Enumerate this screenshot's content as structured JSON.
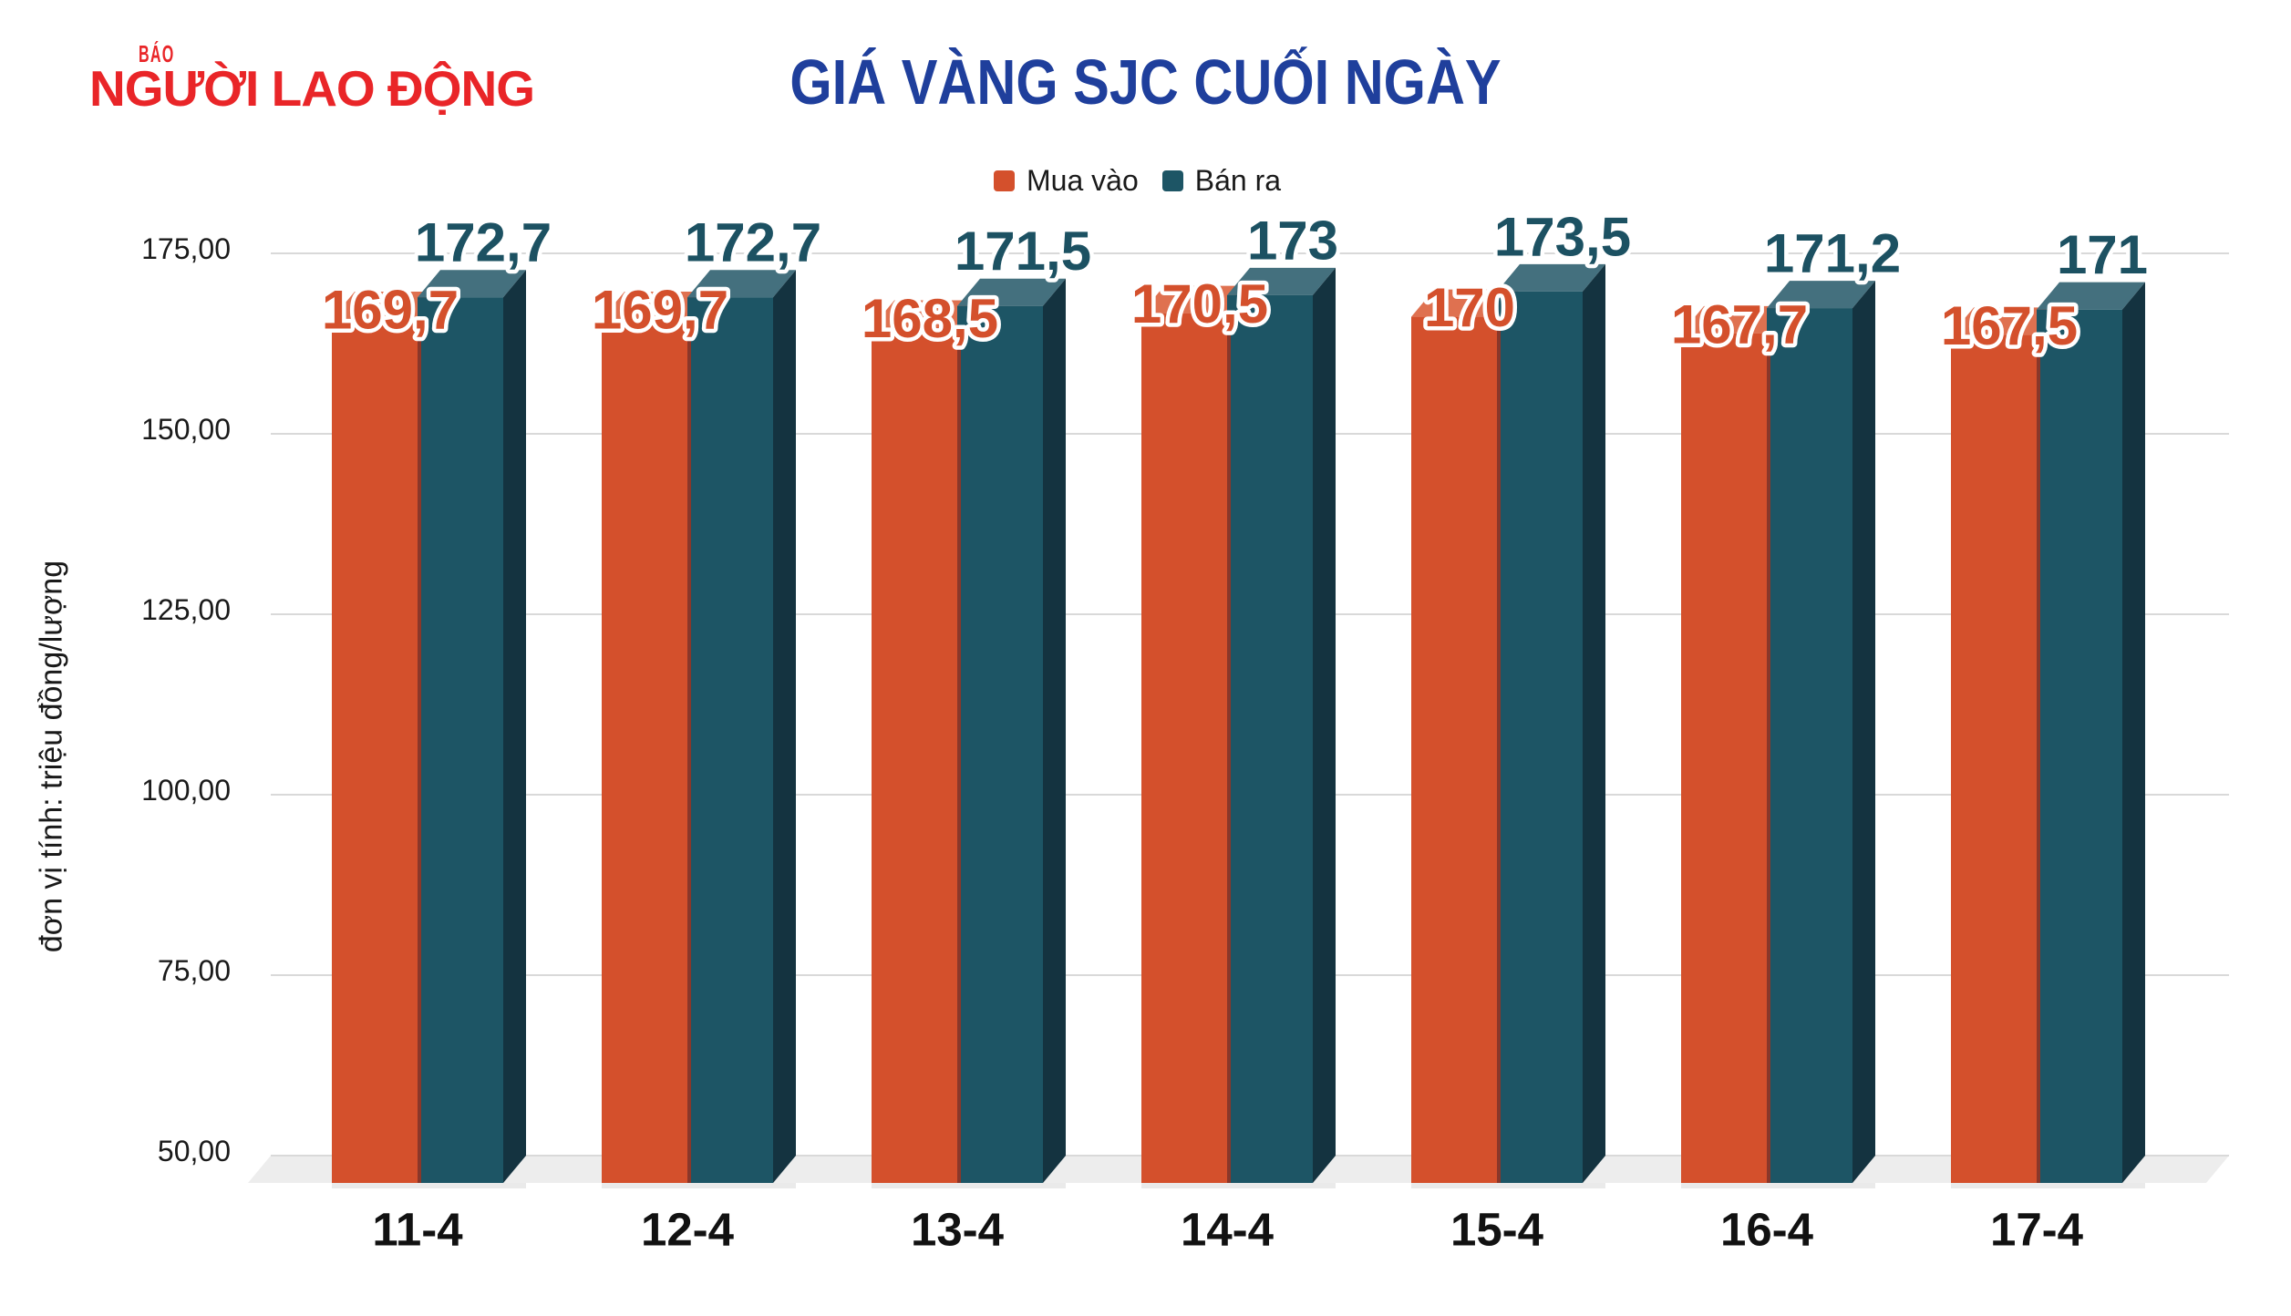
{
  "logo": {
    "prefix": "BÁO",
    "name": "NGƯỜI LAO ĐỘNG"
  },
  "title": "GIÁ VÀNG SJC CUỐI NGÀY",
  "legend": [
    {
      "label": "Mua vào",
      "color": "#D4502C"
    },
    {
      "label": "Bán ra",
      "color": "#1D5565"
    }
  ],
  "y_axis_unit": "đơn vị tính: triệu đồng/lượng",
  "chart_data": {
    "type": "bar",
    "style": "3d-grouped-columns",
    "title": "GIÁ VÀNG SJC CUỐI NGÀY",
    "categories": [
      "11-4",
      "12-4",
      "13-4",
      "14-4",
      "15-4",
      "16-4",
      "17-4"
    ],
    "series": [
      {
        "name": "Mua vào",
        "values": [
          169.7,
          169.7,
          168.5,
          170.5,
          170,
          167.7,
          167.5
        ],
        "labels": [
          "169,7",
          "169,7",
          "168,5",
          "170,5",
          "170",
          "167,7",
          "167,5"
        ],
        "color": "#D4502C",
        "top_color": "#DF7150",
        "edge_color": "#9E3220",
        "label_color": "#D4502C"
      },
      {
        "name": "Bán ra",
        "values": [
          172.7,
          172.7,
          171.5,
          173,
          173.5,
          171.2,
          171
        ],
        "labels": [
          "172,7",
          "172,7",
          "171,5",
          "173",
          "173,5",
          "171,2",
          "171"
        ],
        "color": "#1D5565",
        "top_color": "#44707E",
        "side_color": "#143340",
        "label_color": "#1C5162"
      }
    ],
    "ylim": [
      50,
      175
    ],
    "y_ticks": [
      {
        "value": 175,
        "label": "175,00"
      },
      {
        "value": 150,
        "label": "150,00"
      },
      {
        "value": 125,
        "label": "125,00"
      },
      {
        "value": 100,
        "label": "100,00"
      },
      {
        "value": 75,
        "label": "75,00"
      },
      {
        "value": 50,
        "label": "50,00"
      }
    ],
    "ylabel": "đơn vị tính: triệu đồng/lượng",
    "xlabel": "",
    "grid": true,
    "legend_position": "top"
  },
  "colors": {
    "title": "#1F3F9C",
    "logo": "#E92528",
    "grid": "#D9D9D9",
    "floor": "#EDEDED",
    "shadow": "#DEDEDE",
    "tick_text": "#1A1A1A",
    "label_outline": "#FFFFFF"
  }
}
